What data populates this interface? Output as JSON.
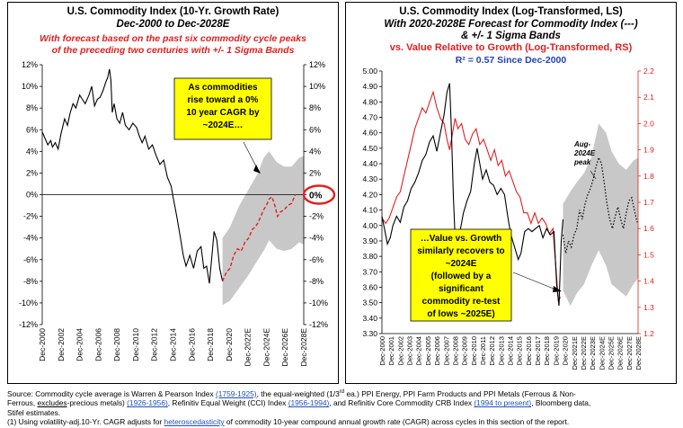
{
  "left_panel": {
    "title_line1": "U.S. Commodity Index (10-Yr. Growth Rate)",
    "title_line2": "Dec-2000 to Dec-2028E",
    "subtitle_line1": "With forecast based on the past six commodity cycle peaks",
    "subtitle_line2": "of the preceding two centuries with +/- 1 Sigma Bands",
    "callout_lines": [
      "As commodities",
      "rise toward a 0%",
      "10 year CAGR by",
      "~2024E…"
    ],
    "highlight_label": "0%"
  },
  "right_panel": {
    "title_line1": "U.S. Commodity Index (Log-Transformed, LS)",
    "title_line2": "With 2020-2028E Forecast for Commodity Index (---)",
    "title_line3": "& +/- 1 Sigma Bands",
    "title_line4": "vs. Value Relative to Growth (Log-Transformed, RS)",
    "r2_label": "R² = 0.57 Since Dec-2000",
    "callout_lines": [
      "…Value vs. Growth",
      "similarly recovers to",
      "~2024E",
      "(followed by a",
      "significant",
      "commodity re-test",
      "of lows ~2025E)"
    ],
    "peak_label_lines": [
      "Aug-",
      "2024E",
      "peak"
    ]
  },
  "colors": {
    "series_black": "#000000",
    "series_red": "#e0201f",
    "band_gray": "#c8c8c8",
    "callout_yellow": "#ffff00",
    "axis_right_red": "#e0201f",
    "r2_blue": "#1f3fbf"
  },
  "footnote": {
    "source_prefix": "Source: Commodity cycle average is Warren & Pearson Index ",
    "source_link1": "(1759-1925)",
    "source_mid1": ", the equal-weighted (1/3",
    "source_sup": "rd",
    "source_mid2": " ea.) PPI Energy, PPI Farm Products and PPI Metals (Ferrous & Non-",
    "source_line2_a": "Ferrous, ",
    "source_line2_ul": "excludes",
    "source_line2_b": "-precious metals) ",
    "source_link2": "(1926-1956)",
    "source_line2_c": ", Refinitiv Equal Weight (CCI) Index ",
    "source_link3": "(1956-1994)",
    "source_line2_d": ", and Refinitiv Core Commodity CRB Index ",
    "source_link4": "(1994 to present)",
    "source_line2_e": ", Bloomberg data,",
    "source_line3": "Stifel estimates.",
    "note_prefix": "(1)   Using volatility-adj.10-Yr. CAGR adjusts for ",
    "note_link": "heteroscedasticity",
    "note_suffix": " of commodity 10-year compound annual growth rate (CAGR) across cycles in this section of the report."
  },
  "chart_data": [
    {
      "type": "line",
      "title": "U.S. Commodity Index (10-Yr. Growth Rate)",
      "subtitle": "Dec-2000 to Dec-2028E",
      "x_tick_labels": [
        "Dec-2000",
        "Dec-2002",
        "Dec-2004",
        "Dec-2006",
        "Dec-2008",
        "Dec-2010",
        "Dec-2012",
        "Dec-2014",
        "Dec-2016",
        "Dec-2018",
        "Dec-2020",
        "Dec-2022E",
        "Dec-2024E",
        "Dec-2026E",
        "Dec-2028E"
      ],
      "y_tick_labels": [
        "12%",
        "10%",
        "8%",
        "6%",
        "4%",
        "2%",
        "0%",
        "-2%",
        "-4%",
        "-6%",
        "-8%",
        "-10%",
        "-12%"
      ],
      "xlim": [
        2000.9,
        2028.9
      ],
      "ylim": [
        -12,
        12
      ],
      "grid": false,
      "series": [
        {
          "style": "solid",
          "color": "#000000",
          "x": [
            2000.9,
            2001.2,
            2001.5,
            2001.8,
            2002.0,
            2002.3,
            2002.6,
            2002.9,
            2003.3,
            2003.6,
            2003.9,
            2004.2,
            2004.5,
            2004.9,
            2005.2,
            2005.5,
            2005.9,
            2006.2,
            2006.5,
            2006.8,
            2007.1,
            2007.4,
            2007.7,
            2007.9,
            2008.1,
            2008.25,
            2008.4,
            2008.6,
            2008.9,
            2009.2,
            2009.5,
            2009.8,
            2010.2,
            2010.6,
            2011.0,
            2011.3,
            2011.6,
            2011.9,
            2012.3,
            2012.7,
            2013.1,
            2013.5,
            2013.9,
            2014.3,
            2014.7,
            2014.95,
            2015.3,
            2015.7,
            2016.0,
            2016.3,
            2016.7,
            2017.1,
            2017.5,
            2017.9,
            2018.2,
            2018.5,
            2018.8,
            2019.1,
            2019.3,
            2019.6,
            2019.9,
            2020.2
          ],
          "y": [
            5.8,
            5.2,
            4.6,
            5.0,
            4.4,
            4.8,
            4.2,
            5.6,
            7.0,
            6.4,
            7.6,
            8.4,
            8.0,
            9.2,
            8.8,
            8.4,
            9.2,
            10.0,
            8.2,
            8.8,
            9.0,
            9.6,
            10.4,
            10.8,
            11.6,
            10.6,
            7.6,
            8.4,
            7.0,
            6.6,
            7.6,
            6.4,
            6.0,
            6.6,
            6.2,
            5.4,
            4.8,
            5.4,
            4.2,
            4.6,
            3.6,
            2.8,
            3.2,
            1.6,
            0.8,
            -0.4,
            -2.0,
            -4.0,
            -5.6,
            -6.6,
            -5.6,
            -6.8,
            -5.2,
            -4.8,
            -6.8,
            -6.6,
            -8.2,
            -5.4,
            -3.4,
            -4.2,
            -6.8,
            -8.0
          ]
        },
        {
          "style": "dashed",
          "color": "#e0201f",
          "name": "forecast",
          "x": [
            2020.2,
            2020.6,
            2021.0,
            2021.4,
            2021.8,
            2022.2,
            2022.6,
            2023.0,
            2023.4,
            2023.7,
            2024.0,
            2024.3,
            2024.6,
            2024.9,
            2025.2,
            2025.5,
            2025.8,
            2026.1,
            2026.4,
            2026.8,
            2027.2,
            2027.6,
            2028.0
          ],
          "y": [
            -8.0,
            -7.2,
            -6.8,
            -5.6,
            -5.0,
            -5.2,
            -4.4,
            -4.0,
            -3.2,
            -3.0,
            -2.6,
            -2.0,
            -1.4,
            -1.0,
            -0.4,
            -0.2,
            -1.0,
            -2.0,
            -1.6,
            -1.4,
            -1.0,
            -0.8,
            0.0
          ]
        },
        {
          "style": "band",
          "color": "#c8c8c8",
          "name": "+/- 1 sigma band",
          "x": [
            2020.2,
            2021.0,
            2022.0,
            2023.0,
            2024.0,
            2024.6,
            2025.2,
            2026.0,
            2026.8,
            2027.6,
            2028.4,
            2028.9
          ],
          "upper": [
            -4.0,
            -3.0,
            -1.0,
            0.5,
            2.0,
            3.4,
            4.0,
            3.0,
            2.6,
            2.6,
            3.4,
            3.6
          ],
          "lower": [
            -10.2,
            -9.8,
            -8.6,
            -7.4,
            -6.0,
            -5.2,
            -4.2,
            -5.0,
            -5.2,
            -5.0,
            -4.4,
            -4.6
          ]
        }
      ]
    },
    {
      "type": "line",
      "title": "U.S. Commodity Index (Log-Transformed, LS)",
      "x_tick_labels": [
        "Dec-2000",
        "Dec-2001",
        "Dec-2002",
        "Dec-2003",
        "Dec-2004",
        "Dec-2005",
        "Dec-2006",
        "Dec-2007",
        "Dec-2008",
        "Dec-2009",
        "Dec-2010",
        "Dec-2011",
        "Dec-2012",
        "Dec-2013",
        "Dec-2014",
        "Dec-2015",
        "Dec-2016",
        "Dec-2017",
        "Dec-2018",
        "Dec-2019",
        "Dec-2020",
        "Dec-2021E",
        "Dec-2022E",
        "Dec-2023E",
        "Dec-2024E",
        "Dec-2025E",
        "Dec-2026E",
        "Dec-2027E",
        "Dec-2028E"
      ],
      "y_left_tick_labels": [
        "5.00",
        "4.90",
        "4.80",
        "4.70",
        "4.60",
        "4.50",
        "4.40",
        "4.30",
        "4.20",
        "4.10",
        "4.00",
        "3.90",
        "3.80",
        "3.70",
        "3.60",
        "3.50",
        "3.40",
        "3.30"
      ],
      "y_right_tick_labels": [
        "2.2",
        "2.1",
        "2.0",
        "1.9",
        "1.8",
        "1.7",
        "1.6",
        "1.5",
        "1.4",
        "1.3",
        "1.2"
      ],
      "xlim": [
        2000.9,
        2028.9
      ],
      "ylim_left": [
        3.3,
        5.0
      ],
      "ylim_right": [
        1.2,
        2.2
      ],
      "series": [
        {
          "axis": "left",
          "style": "solid",
          "color": "#000000",
          "name": "U.S. Commodity Index (Log-Transformed, LS)",
          "x": [
            2000.9,
            2001.2,
            2001.5,
            2001.8,
            2002.1,
            2002.5,
            2002.9,
            2003.3,
            2003.7,
            2004.1,
            2004.5,
            2004.9,
            2005.3,
            2005.7,
            2006.1,
            2006.5,
            2006.9,
            2007.3,
            2007.7,
            2008.0,
            2008.3,
            2008.5,
            2008.7,
            2008.9,
            2009.2,
            2009.5,
            2009.8,
            2010.2,
            2010.6,
            2011.0,
            2011.3,
            2011.6,
            2011.9,
            2012.3,
            2012.7,
            2013.1,
            2013.5,
            2013.9,
            2014.3,
            2014.7,
            2015.0,
            2015.4,
            2015.8,
            2016.1,
            2016.5,
            2016.9,
            2017.3,
            2017.7,
            2018.1,
            2018.5,
            2018.9,
            2019.3,
            2019.7,
            2020.0,
            2020.25,
            2020.5,
            2020.7
          ],
          "y": [
            4.06,
            3.97,
            3.88,
            3.92,
            4.0,
            4.06,
            4.02,
            4.12,
            4.16,
            4.24,
            4.28,
            4.34,
            4.42,
            4.46,
            4.54,
            4.58,
            4.48,
            4.6,
            4.72,
            4.86,
            4.92,
            4.6,
            4.2,
            3.92,
            3.88,
            3.98,
            4.08,
            4.16,
            4.22,
            4.4,
            4.5,
            4.4,
            4.3,
            4.36,
            4.28,
            4.26,
            4.2,
            4.24,
            4.2,
            4.04,
            3.94,
            3.86,
            3.78,
            3.82,
            3.96,
            3.98,
            3.96,
            3.98,
            4.0,
            3.92,
            3.98,
            3.94,
            3.96,
            3.62,
            3.48,
            3.9,
            4.04
          ]
        },
        {
          "axis": "right",
          "style": "solid",
          "color": "#e0201f",
          "name": "Value Relative to Growth (Log-Transformed, RS)",
          "x": [
            2000.9,
            2001.3,
            2001.7,
            2002.1,
            2002.5,
            2002.9,
            2003.3,
            2003.7,
            2004.1,
            2004.5,
            2004.9,
            2005.3,
            2005.7,
            2006.1,
            2006.5,
            2006.9,
            2007.3,
            2007.7,
            2008.0,
            2008.3,
            2008.6,
            2008.9,
            2009.2,
            2009.6,
            2010.0,
            2010.4,
            2010.8,
            2011.2,
            2011.6,
            2012.0,
            2012.4,
            2012.8,
            2013.2,
            2013.6,
            2014.0,
            2014.4,
            2014.8,
            2015.2,
            2015.6,
            2016.0,
            2016.4,
            2016.8,
            2017.2,
            2017.6,
            2018.0,
            2018.4,
            2018.8,
            2019.2,
            2019.6,
            2019.9,
            2020.2,
            2020.4
          ],
          "y": [
            1.64,
            1.62,
            1.64,
            1.68,
            1.72,
            1.74,
            1.8,
            1.86,
            1.92,
            1.98,
            2.02,
            2.06,
            2.04,
            2.08,
            2.12,
            2.06,
            2.02,
            2.0,
            1.94,
            1.9,
            1.96,
            2.02,
            1.98,
            2.0,
            1.94,
            1.92,
            1.96,
            1.98,
            1.92,
            1.94,
            1.9,
            1.86,
            1.9,
            1.84,
            1.86,
            1.8,
            1.82,
            1.78,
            1.74,
            1.72,
            1.66,
            1.66,
            1.62,
            1.66,
            1.62,
            1.64,
            1.62,
            1.58,
            1.6,
            1.46,
            1.32,
            1.34
          ]
        },
        {
          "axis": "left",
          "style": "dotted",
          "color": "#000000",
          "name": "2020-2028E Forecast for Commodity Index",
          "x": [
            2020.7,
            2021.0,
            2021.3,
            2021.6,
            2021.9,
            2022.2,
            2022.5,
            2022.8,
            2023.1,
            2023.4,
            2023.7,
            2024.0,
            2024.3,
            2024.6,
            2024.9,
            2025.2,
            2025.5,
            2025.8,
            2026.1,
            2026.4,
            2026.7,
            2027.0,
            2027.3,
            2027.6,
            2027.9,
            2028.2,
            2028.5,
            2028.8
          ],
          "y": [
            3.94,
            3.82,
            3.9,
            3.86,
            3.94,
            3.98,
            4.1,
            4.04,
            4.14,
            4.2,
            4.24,
            4.3,
            4.38,
            4.44,
            4.4,
            4.28,
            4.14,
            4.04,
            3.98,
            4.06,
            4.12,
            4.04,
            3.98,
            4.08,
            4.16,
            4.18,
            4.1,
            4.02
          ]
        },
        {
          "axis": "left",
          "style": "band",
          "color": "#c8c8c8",
          "name": "+/- 1 sigma band",
          "x": [
            2020.7,
            2021.5,
            2022.2,
            2023.0,
            2023.8,
            2024.6,
            2025.4,
            2026.0,
            2026.8,
            2027.6,
            2028.4,
            2028.9
          ],
          "upper": [
            4.14,
            4.22,
            4.28,
            4.34,
            4.44,
            4.66,
            4.6,
            4.48,
            4.4,
            4.36,
            4.42,
            4.44
          ],
          "lower": [
            3.58,
            3.48,
            3.56,
            3.62,
            3.74,
            3.84,
            3.74,
            3.62,
            3.58,
            3.54,
            3.62,
            3.66
          ]
        }
      ]
    }
  ]
}
